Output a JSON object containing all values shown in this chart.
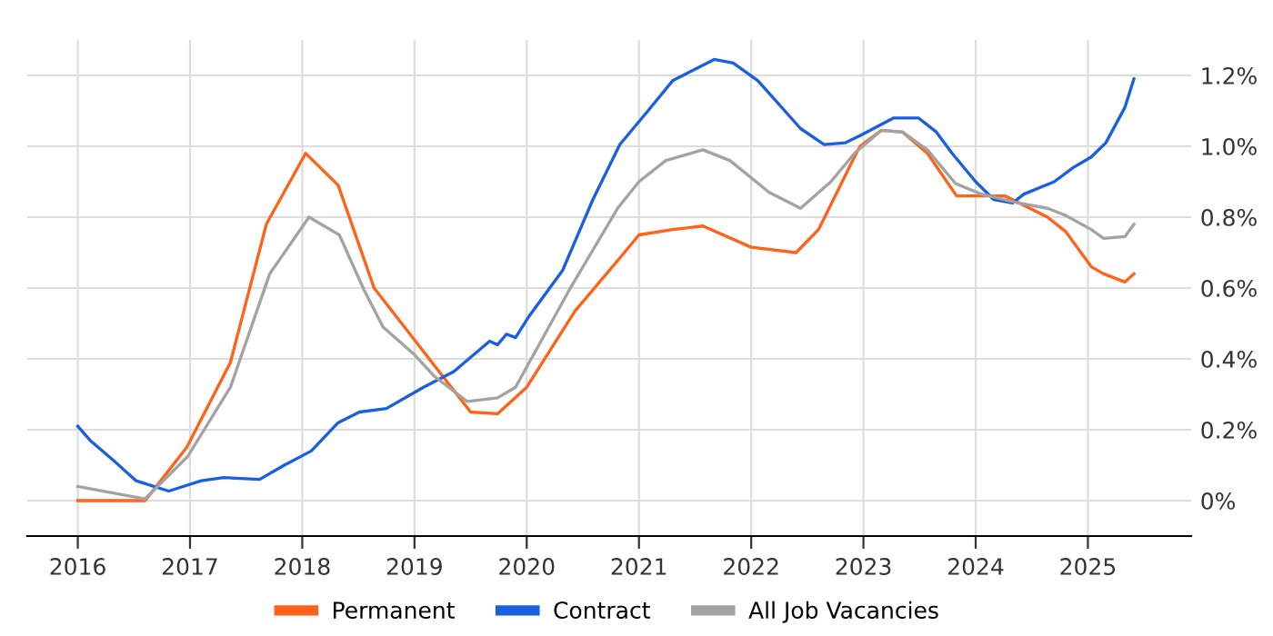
{
  "chart_data": {
    "type": "line",
    "xlim": [
      2015.55,
      2025.92
    ],
    "ylim": [
      -0.1,
      1.3
    ],
    "xticks": [
      2016,
      2017,
      2018,
      2019,
      2020,
      2021,
      2022,
      2023,
      2024,
      2025
    ],
    "yticks": [
      {
        "value": 0,
        "label": "0%"
      },
      {
        "value": 0.2,
        "label": "0.2%"
      },
      {
        "value": 0.4,
        "label": "0.4%"
      },
      {
        "value": 0.6,
        "label": "0.6%"
      },
      {
        "value": 0.8,
        "label": "0.8%"
      },
      {
        "value": 1.0,
        "label": "1.0%"
      },
      {
        "value": 1.2,
        "label": "1.2%"
      }
    ],
    "grid": true,
    "legend": "bottom",
    "marker": "none",
    "line_style": "solid",
    "series": [
      {
        "name": "Permanent",
        "color": "#ff6219",
        "x": [
          2016.0,
          2016.6,
          2016.97,
          2017.36,
          2017.68,
          2018.03,
          2018.32,
          2018.64,
          2018.96,
          2019.18,
          2019.5,
          2019.74,
          2020.0,
          2020.43,
          2020.87,
          2021.0,
          2021.3,
          2021.57,
          2022.0,
          2022.4,
          2022.6,
          2022.92,
          2022.97,
          2023.16,
          2023.35,
          2023.57,
          2023.83,
          2024.05,
          2024.26,
          2024.64,
          2024.8,
          2025.03,
          2025.14,
          2025.33,
          2025.41
        ],
        "values": [
          0.0,
          0.0,
          0.15,
          0.39,
          0.78,
          0.98,
          0.89,
          0.6,
          0.47,
          0.38,
          0.25,
          0.245,
          0.32,
          0.535,
          0.7,
          0.75,
          0.765,
          0.775,
          0.715,
          0.7,
          0.765,
          0.97,
          1.0,
          1.045,
          1.04,
          0.98,
          0.86,
          0.86,
          0.86,
          0.8,
          0.76,
          0.66,
          0.64,
          0.617,
          0.64
        ]
      },
      {
        "name": "Contract",
        "color": "#1a5fe0",
        "x": [
          2016.0,
          2016.11,
          2016.33,
          2016.52,
          2016.81,
          2017.1,
          2017.3,
          2017.62,
          2017.84,
          2018.08,
          2018.32,
          2018.51,
          2018.75,
          2019.08,
          2019.35,
          2019.67,
          2019.74,
          2019.82,
          2019.9,
          2020.02,
          2020.32,
          2020.59,
          2020.83,
          2021.08,
          2021.3,
          2021.67,
          2021.84,
          2022.06,
          2022.44,
          2022.65,
          2022.84,
          2022.97,
          2023.27,
          2023.49,
          2023.65,
          2023.79,
          2024.0,
          2024.16,
          2024.33,
          2024.43,
          2024.7,
          2024.87,
          2025.03,
          2025.16,
          2025.33,
          2025.41
        ],
        "values": [
          0.21,
          0.17,
          0.11,
          0.056,
          0.027,
          0.056,
          0.065,
          0.06,
          0.1,
          0.14,
          0.22,
          0.25,
          0.26,
          0.32,
          0.364,
          0.45,
          0.44,
          0.47,
          0.46,
          0.52,
          0.65,
          0.85,
          1.005,
          1.1,
          1.185,
          1.245,
          1.235,
          1.185,
          1.05,
          1.005,
          1.01,
          1.03,
          1.08,
          1.08,
          1.04,
          0.98,
          0.9,
          0.85,
          0.84,
          0.865,
          0.9,
          0.94,
          0.97,
          1.01,
          1.11,
          1.19
        ]
      },
      {
        "name": "All Job Vacancies",
        "color": "#a3a3a3",
        "x": [
          2016.0,
          2016.6,
          2016.98,
          2017.36,
          2017.71,
          2018.06,
          2018.33,
          2018.55,
          2018.72,
          2018.99,
          2019.18,
          2019.47,
          2019.74,
          2019.9,
          2020.38,
          2020.81,
          2021.0,
          2021.24,
          2021.57,
          2021.81,
          2022.16,
          2022.44,
          2022.71,
          2022.92,
          2023.16,
          2023.35,
          2023.57,
          2023.82,
          2024.05,
          2024.38,
          2024.64,
          2024.8,
          2025.03,
          2025.14,
          2025.33,
          2025.41
        ],
        "values": [
          0.04,
          0.005,
          0.125,
          0.32,
          0.64,
          0.8,
          0.75,
          0.595,
          0.49,
          0.415,
          0.35,
          0.28,
          0.29,
          0.32,
          0.595,
          0.825,
          0.9,
          0.96,
          0.99,
          0.96,
          0.87,
          0.825,
          0.9,
          0.98,
          1.045,
          1.04,
          0.99,
          0.895,
          0.865,
          0.84,
          0.825,
          0.805,
          0.765,
          0.74,
          0.745,
          0.78
        ]
      }
    ]
  }
}
